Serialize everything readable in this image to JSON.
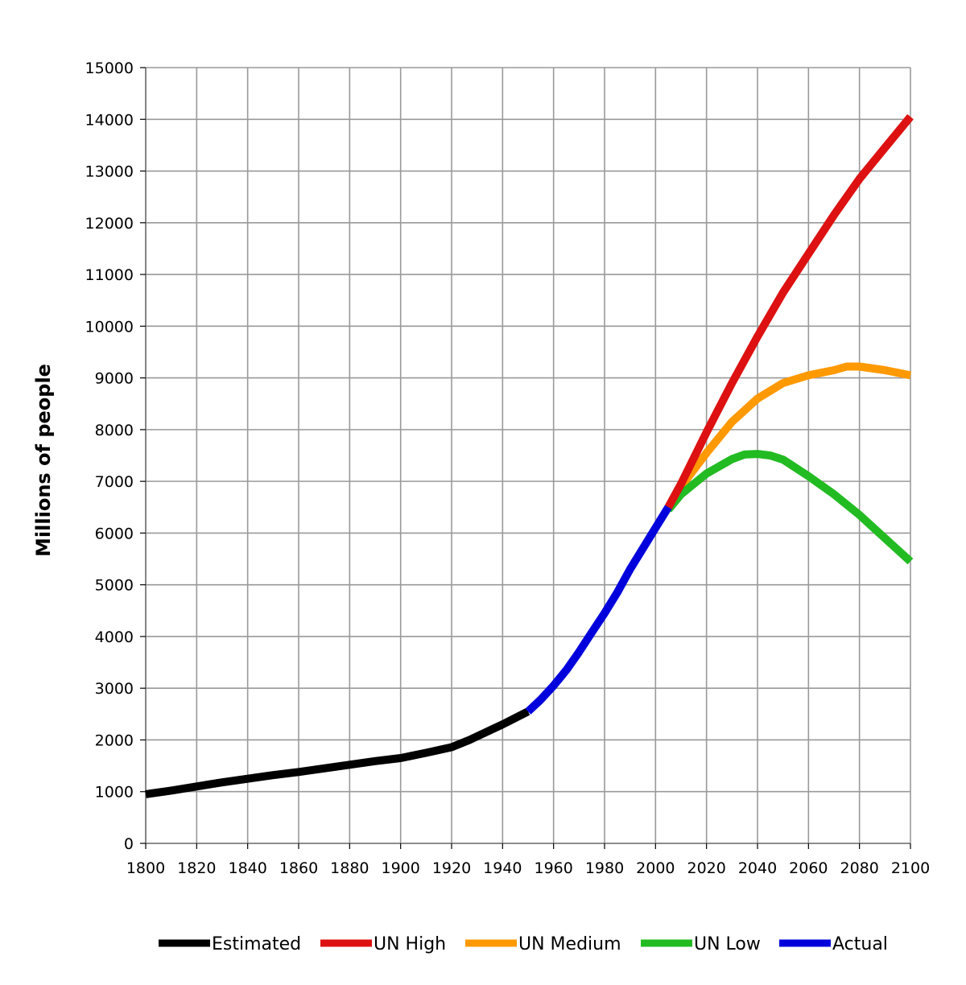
{
  "chart_data": {
    "type": "line",
    "title": "",
    "xlabel": "",
    "ylabel": "Millions of people",
    "xlim": [
      1800,
      2100
    ],
    "ylim": [
      0,
      15000
    ],
    "x_ticks": [
      "1800",
      "1820",
      "1840",
      "1860",
      "1880",
      "1900",
      "1920",
      "1940",
      "1960",
      "1980",
      "2000",
      "2020",
      "2040",
      "2060",
      "2080",
      "2100"
    ],
    "y_ticks": [
      "0",
      "1000",
      "2000",
      "3000",
      "4000",
      "5000",
      "6000",
      "7000",
      "8000",
      "9000",
      "10000",
      "11000",
      "12000",
      "13000",
      "14000",
      "15000"
    ],
    "grid": true,
    "legend_position": "bottom",
    "series": [
      {
        "name": "Estimated",
        "color": "#000000",
        "x": [
          1800,
          1810,
          1820,
          1830,
          1840,
          1850,
          1860,
          1870,
          1880,
          1890,
          1900,
          1910,
          1920,
          1927,
          1930,
          1940,
          1950
        ],
        "y": [
          950,
          1020,
          1100,
          1180,
          1250,
          1320,
          1380,
          1450,
          1520,
          1590,
          1650,
          1750,
          1860,
          2000,
          2070,
          2300,
          2550
        ]
      },
      {
        "name": "UN High",
        "color": "#dd1111",
        "x": [
          2005,
          2010,
          2020,
          2030,
          2040,
          2050,
          2060,
          2070,
          2080,
          2090,
          2100
        ],
        "y": [
          6500,
          6950,
          7950,
          8900,
          9800,
          10650,
          11400,
          12150,
          12850,
          13450,
          14050
        ]
      },
      {
        "name": "UN Medium",
        "color": "#ff9900",
        "x": [
          2005,
          2010,
          2020,
          2030,
          2040,
          2050,
          2060,
          2070,
          2075,
          2080,
          2090,
          2100
        ],
        "y": [
          6500,
          6900,
          7550,
          8150,
          8600,
          8900,
          9050,
          9150,
          9220,
          9220,
          9150,
          9050
        ]
      },
      {
        "name": "UN Low",
        "color": "#22bb22",
        "x": [
          2005,
          2010,
          2020,
          2030,
          2035,
          2040,
          2045,
          2050,
          2060,
          2070,
          2080,
          2090,
          2100
        ],
        "y": [
          6450,
          6750,
          7150,
          7430,
          7520,
          7530,
          7500,
          7420,
          7100,
          6750,
          6350,
          5900,
          5450
        ]
      },
      {
        "name": "Actual",
        "color": "#0000dd",
        "x": [
          1950,
          1955,
          1960,
          1965,
          1970,
          1975,
          1980,
          1985,
          1990,
          1995,
          2000,
          2005
        ],
        "y": [
          2550,
          2780,
          3050,
          3350,
          3700,
          4080,
          4450,
          4850,
          5300,
          5700,
          6100,
          6500
        ]
      }
    ]
  }
}
